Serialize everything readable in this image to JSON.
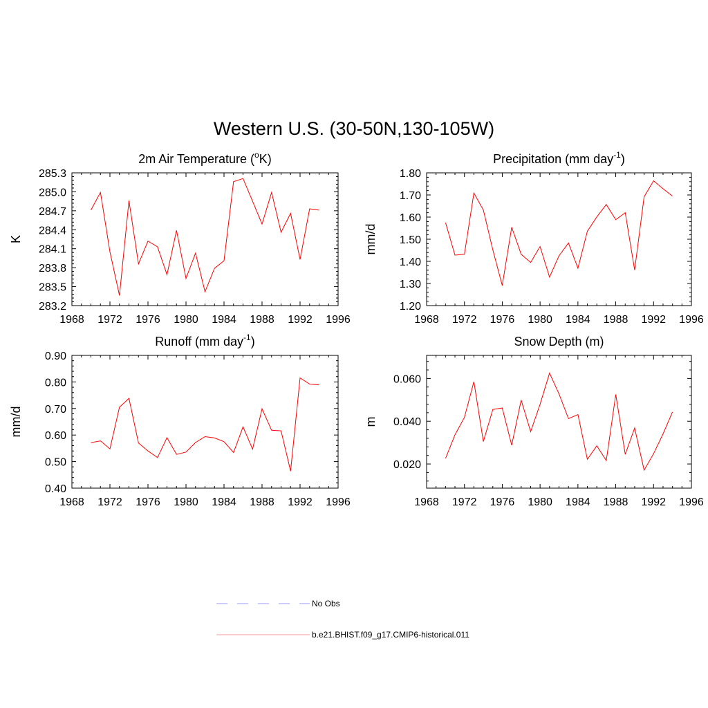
{
  "figure": {
    "title": "Western U.S. (30-50N,130-105W)"
  },
  "legend": {
    "items": [
      {
        "label": "No Obs",
        "color": "#9999ff",
        "style": "dashed"
      },
      {
        "label": "b.e21.BHIST.f09_g17.CMIP6-historical.011",
        "color": "#ff9999",
        "style": "solid"
      }
    ]
  },
  "chart_data": [
    {
      "type": "line",
      "title": "2m Air Temperature (oK)",
      "title_parts": {
        "pre": "2m Air Temperature (",
        "sup": "o",
        "post": "K)"
      },
      "xlabel": "",
      "ylabel": "K",
      "xlim": [
        1968,
        1996
      ],
      "ylim": [
        283.2,
        285.3
      ],
      "xticks": [
        "1968",
        "1972",
        "1976",
        "1980",
        "1984",
        "1988",
        "1992",
        "1996"
      ],
      "yticks": [
        "283.2",
        "283.5",
        "283.8",
        "284.1",
        "284.4",
        "284.7",
        "285.0",
        "285.3"
      ],
      "series": [
        {
          "x": [
            1970,
            1971,
            1972,
            1973,
            1974,
            1975,
            1976,
            1977,
            1978,
            1979,
            1980,
            1981,
            1982,
            1983,
            1984,
            1985,
            1986,
            1987,
            1988,
            1989,
            1990,
            1991,
            1992,
            1993,
            1994
          ],
          "values": [
            284.71,
            284.99,
            284.05,
            283.36,
            284.86,
            283.86,
            284.22,
            284.13,
            283.69,
            284.39,
            283.63,
            284.03,
            283.42,
            283.79,
            283.91,
            285.16,
            285.21,
            284.85,
            284.49,
            284.99,
            284.36,
            284.66,
            283.93,
            284.73,
            284.71
          ],
          "color": "#ff0000"
        }
      ]
    },
    {
      "type": "line",
      "title": "Precipitation (mm day-1)",
      "title_parts": {
        "pre": "Precipitation (mm day",
        "sup": "-1",
        "post": ")"
      },
      "xlabel": "",
      "ylabel": "mm/d",
      "xlim": [
        1968,
        1996
      ],
      "ylim": [
        1.2,
        1.8
      ],
      "xticks": [
        "1968",
        "1972",
        "1976",
        "1980",
        "1984",
        "1988",
        "1992",
        "1996"
      ],
      "yticks": [
        "1.20",
        "1.30",
        "1.40",
        "1.50",
        "1.60",
        "1.70",
        "1.80"
      ],
      "series": [
        {
          "x": [
            1970,
            1971,
            1972,
            1973,
            1974,
            1975,
            1976,
            1977,
            1978,
            1979,
            1980,
            1981,
            1982,
            1983,
            1984,
            1985,
            1986,
            1987,
            1988,
            1989,
            1990,
            1991,
            1992,
            1993,
            1994
          ],
          "values": [
            1.575,
            1.428,
            1.432,
            1.709,
            1.632,
            1.452,
            1.291,
            1.554,
            1.432,
            1.395,
            1.467,
            1.329,
            1.425,
            1.483,
            1.369,
            1.536,
            1.601,
            1.657,
            1.588,
            1.62,
            1.361,
            1.692,
            1.764,
            1.728,
            1.695
          ],
          "color": "#ff0000"
        }
      ]
    },
    {
      "type": "line",
      "title": "Runoff (mm day-1)",
      "title_parts": {
        "pre": "Runoff (mm day",
        "sup": "-1",
        "post": ")"
      },
      "xlabel": "",
      "ylabel": "mm/d",
      "xlim": [
        1968,
        1996
      ],
      "ylim": [
        0.4,
        0.9
      ],
      "xticks": [
        "1968",
        "1972",
        "1976",
        "1980",
        "1984",
        "1988",
        "1992",
        "1996"
      ],
      "yticks": [
        "0.40",
        "0.50",
        "0.60",
        "0.70",
        "0.80",
        "0.90"
      ],
      "series": [
        {
          "x": [
            1970,
            1971,
            1972,
            1973,
            1974,
            1975,
            1976,
            1977,
            1978,
            1979,
            1980,
            1981,
            1982,
            1983,
            1984,
            1985,
            1986,
            1987,
            1988,
            1989,
            1990,
            1991,
            1992,
            1993,
            1994
          ],
          "values": [
            0.571,
            0.578,
            0.548,
            0.705,
            0.738,
            0.57,
            0.54,
            0.515,
            0.59,
            0.527,
            0.536,
            0.572,
            0.594,
            0.589,
            0.575,
            0.534,
            0.631,
            0.547,
            0.699,
            0.618,
            0.616,
            0.464,
            0.815,
            0.792,
            0.789
          ],
          "color": "#ff0000"
        }
      ]
    },
    {
      "type": "line",
      "title": "Snow Depth (m)",
      "title_parts": {
        "pre": "Snow Depth (m)",
        "sup": "",
        "post": ""
      },
      "xlabel": "",
      "ylabel": "m",
      "xlim": [
        1968,
        1996
      ],
      "ylim": [
        0.0087,
        0.0708
      ],
      "xticks": [
        "1968",
        "1972",
        "1976",
        "1980",
        "1984",
        "1988",
        "1992",
        "1996"
      ],
      "yticks": [
        "0.020",
        "0.040",
        "0.060"
      ],
      "series": [
        {
          "x": [
            1970,
            1971,
            1972,
            1973,
            1974,
            1975,
            1976,
            1977,
            1978,
            1979,
            1980,
            1981,
            1982,
            1983,
            1984,
            1985,
            1986,
            1987,
            1988,
            1989,
            1990,
            1991,
            1992,
            1993,
            1994
          ],
          "values": [
            0.0226,
            0.0336,
            0.0418,
            0.0585,
            0.0305,
            0.0455,
            0.0462,
            0.0288,
            0.0499,
            0.0351,
            0.0479,
            0.0625,
            0.0528,
            0.0412,
            0.0431,
            0.0222,
            0.0285,
            0.0216,
            0.0525,
            0.0245,
            0.0368,
            0.0171,
            0.0248,
            0.0341,
            0.0443
          ],
          "color": "#ff0000"
        }
      ]
    }
  ]
}
